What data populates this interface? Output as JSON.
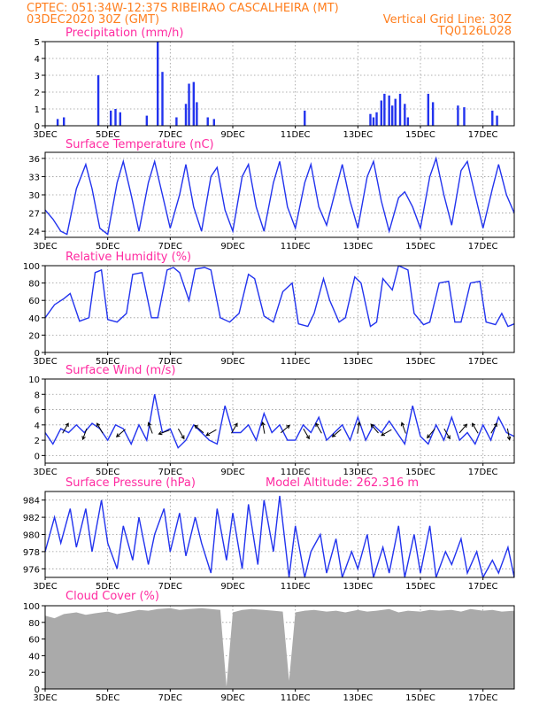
{
  "header": {
    "line1": "CPTEC:   051:34W-12:37S  RIBEIRAO CASCALHEIRA (MT)",
    "line2": "03DEC2020 30Z (GMT)",
    "grid_note": "Vertical Grid Line: 30Z",
    "code": "TQ0126L028"
  },
  "x_dates": [
    "3DEC",
    "5DEC",
    "7DEC",
    "9DEC",
    "11DEC",
    "13DEC",
    "15DEC",
    "17DEC"
  ],
  "colors": {
    "line": "#2233ee",
    "cloud": "#aaaaaa",
    "title": "#ff2aa0",
    "header": "#ff7f1f"
  },
  "chart_data": [
    {
      "type": "bar",
      "title": "Precipitation (mm/h)",
      "ylim": [
        0,
        5
      ],
      "yticks": [
        0,
        1,
        2,
        3,
        4,
        5
      ],
      "x_range_days": [
        3,
        18
      ],
      "x": [
        3.4,
        3.6,
        4.7,
        5.1,
        5.25,
        5.4,
        6.25,
        6.6,
        6.75,
        7.2,
        7.5,
        7.6,
        7.75,
        7.85,
        8.2,
        8.4,
        11.3,
        13.4,
        13.5,
        13.6,
        13.75,
        13.85,
        14.0,
        14.1,
        14.2,
        14.35,
        14.5,
        14.6,
        15.25,
        15.4,
        16.2,
        16.4,
        17.3,
        17.45
      ],
      "values": [
        0.4,
        0.5,
        3.0,
        0.9,
        1.0,
        0.8,
        0.6,
        5.0,
        3.2,
        0.5,
        1.3,
        2.5,
        2.6,
        1.4,
        0.5,
        0.4,
        0.9,
        0.7,
        0.5,
        0.8,
        1.5,
        1.9,
        1.8,
        1.2,
        1.6,
        1.9,
        1.3,
        0.5,
        1.9,
        1.4,
        1.2,
        1.1,
        0.9,
        0.6
      ]
    },
    {
      "type": "line",
      "title": "Surface Temperature (nC)",
      "ylim": [
        23,
        37
      ],
      "yticks": [
        24,
        27,
        30,
        33,
        36
      ],
      "x_range_days": [
        3,
        18
      ],
      "x": [
        3.0,
        3.25,
        3.5,
        3.7,
        4.0,
        4.3,
        4.5,
        4.75,
        5.0,
        5.3,
        5.5,
        5.75,
        6.0,
        6.3,
        6.5,
        6.75,
        7.0,
        7.3,
        7.5,
        7.75,
        8.0,
        8.3,
        8.5,
        8.75,
        9.0,
        9.3,
        9.5,
        9.75,
        10.0,
        10.3,
        10.5,
        10.75,
        11.0,
        11.3,
        11.5,
        11.75,
        12.0,
        12.3,
        12.5,
        12.75,
        13.0,
        13.3,
        13.5,
        13.75,
        14.0,
        14.3,
        14.5,
        14.75,
        15.0,
        15.3,
        15.5,
        15.75,
        16.0,
        16.3,
        16.5,
        16.75,
        17.0,
        17.3,
        17.5,
        17.75,
        18.0
      ],
      "values": [
        27.5,
        26,
        24,
        23.5,
        31,
        35,
        31,
        24.5,
        23.5,
        32,
        35.5,
        30,
        24,
        32,
        35.5,
        30,
        24.5,
        30,
        35,
        28,
        24,
        33,
        34.5,
        27.5,
        24,
        33,
        35,
        28,
        24,
        32,
        35.5,
        28,
        24.5,
        32,
        35,
        28,
        25,
        31,
        35,
        29,
        24.5,
        33,
        35.5,
        29,
        24,
        29.5,
        30.5,
        28,
        24.5,
        33,
        36,
        30,
        25,
        34,
        35.5,
        30,
        24.5,
        31,
        35,
        30,
        27
      ]
    },
    {
      "type": "line",
      "title": "Relative Humidity (%)",
      "ylim": [
        0,
        100
      ],
      "yticks": [
        0,
        20,
        40,
        60,
        80,
        100
      ],
      "x_range_days": [
        3,
        18
      ],
      "x": [
        3.0,
        3.3,
        3.6,
        3.8,
        4.1,
        4.4,
        4.6,
        4.8,
        5.0,
        5.3,
        5.6,
        5.8,
        6.1,
        6.4,
        6.6,
        6.9,
        7.1,
        7.3,
        7.6,
        7.8,
        8.1,
        8.3,
        8.6,
        8.9,
        9.2,
        9.5,
        9.7,
        10.0,
        10.3,
        10.6,
        10.9,
        11.1,
        11.4,
        11.6,
        11.9,
        12.1,
        12.4,
        12.6,
        12.9,
        13.1,
        13.4,
        13.6,
        13.8,
        14.1,
        14.3,
        14.6,
        14.8,
        15.1,
        15.3,
        15.6,
        15.9,
        16.1,
        16.3,
        16.6,
        16.9,
        17.1,
        17.4,
        17.6,
        17.8,
        18.0
      ],
      "values": [
        40,
        55,
        62,
        68,
        36,
        40,
        92,
        95,
        38,
        35,
        45,
        90,
        92,
        40,
        40,
        95,
        98,
        92,
        60,
        96,
        98,
        95,
        40,
        35,
        45,
        90,
        85,
        42,
        35,
        70,
        80,
        33,
        30,
        45,
        85,
        60,
        35,
        40,
        87,
        80,
        30,
        35,
        85,
        72,
        100,
        95,
        45,
        32,
        35,
        80,
        82,
        35,
        35,
        80,
        82,
        35,
        32,
        45,
        30,
        33
      ]
    },
    {
      "type": "line",
      "title": "Surface Wind (m/s)",
      "ylim": [
        -1,
        10
      ],
      "yticks": [
        0,
        2,
        4,
        6,
        8,
        10
      ],
      "x_range_days": [
        3,
        18
      ],
      "x": [
        3.0,
        3.25,
        3.5,
        3.75,
        4.0,
        4.25,
        4.5,
        4.75,
        5.0,
        5.25,
        5.5,
        5.75,
        6.0,
        6.25,
        6.5,
        6.75,
        7.0,
        7.25,
        7.5,
        7.75,
        8.0,
        8.25,
        8.5,
        8.75,
        9.0,
        9.25,
        9.5,
        9.75,
        10.0,
        10.25,
        10.5,
        10.75,
        11.0,
        11.25,
        11.5,
        11.75,
        12.0,
        12.25,
        12.5,
        12.75,
        13.0,
        13.25,
        13.5,
        13.75,
        14.0,
        14.25,
        14.5,
        14.75,
        15.0,
        15.25,
        15.5,
        15.75,
        16.0,
        16.25,
        16.5,
        16.75,
        17.0,
        17.25,
        17.5,
        17.75,
        18.0
      ],
      "values": [
        3,
        1.5,
        3.5,
        3,
        4,
        3,
        4.2,
        3.5,
        2,
        4,
        3.5,
        1.5,
        4,
        2,
        8,
        3,
        3.5,
        1,
        2,
        4,
        3,
        2,
        1.5,
        6.5,
        3,
        3,
        4,
        2,
        5.5,
        3,
        4,
        2,
        2,
        4,
        3,
        5,
        2,
        3,
        4,
        2,
        5,
        2,
        4,
        3,
        4.5,
        3,
        1.5,
        6.5,
        2.5,
        1.5,
        4,
        2,
        5,
        2,
        3,
        1.5,
        4,
        2,
        5,
        3,
        2.5
      ],
      "arrow_x": [
        3.6,
        4.3,
        4.8,
        5.5,
        6.4,
        6.9,
        7.3,
        8.0,
        8.4,
        9.0,
        10.0,
        10.6,
        11.3,
        11.8,
        12.4,
        13.0,
        13.6,
        14.0,
        14.5,
        15.4,
        15.8,
        16.3,
        16.8,
        17.3,
        17.8
      ],
      "arrow_dir_deg": [
        60,
        250,
        120,
        220,
        110,
        200,
        300,
        140,
        210,
        60,
        100,
        40,
        300,
        120,
        220,
        80,
        130,
        210,
        110,
        230,
        300,
        50,
        120,
        60,
        280
      ]
    },
    {
      "type": "line",
      "title": "Surface Pressure (hPa)",
      "annotation": "Model Altitude: 262.316 m",
      "ylim": [
        975,
        985
      ],
      "yticks": [
        976,
        978,
        980,
        982,
        984
      ],
      "x_range_days": [
        3,
        18
      ],
      "x": [
        3.0,
        3.3,
        3.5,
        3.8,
        4.0,
        4.3,
        4.5,
        4.8,
        5.0,
        5.3,
        5.5,
        5.8,
        6.0,
        6.3,
        6.5,
        6.8,
        7.0,
        7.3,
        7.5,
        7.8,
        8.0,
        8.3,
        8.5,
        8.8,
        9.0,
        9.3,
        9.5,
        9.8,
        10.0,
        10.3,
        10.5,
        10.8,
        11.0,
        11.3,
        11.5,
        11.8,
        12.0,
        12.3,
        12.5,
        12.8,
        13.0,
        13.3,
        13.5,
        13.8,
        14.0,
        14.3,
        14.5,
        14.8,
        15.0,
        15.3,
        15.5,
        15.8,
        16.0,
        16.3,
        16.5,
        16.8,
        17.0,
        17.3,
        17.5,
        17.8,
        18.0
      ],
      "values": [
        978,
        982,
        979,
        983,
        978.5,
        983,
        978,
        984,
        979,
        976,
        981,
        977,
        982,
        976.5,
        980,
        983,
        978,
        982.5,
        977.5,
        982,
        979,
        975.5,
        983,
        977,
        982.5,
        976,
        983.5,
        976.5,
        984,
        978,
        984.5,
        975,
        981,
        975,
        978,
        980,
        975.5,
        979.5,
        975,
        978,
        976,
        980,
        975,
        978.5,
        975.5,
        981,
        975,
        980,
        975.5,
        981,
        975,
        978,
        976.5,
        979.5,
        975.5,
        978,
        975,
        977,
        975.5,
        978.5,
        975
      ]
    },
    {
      "type": "area",
      "title": "Cloud Cover (%)",
      "ylim": [
        0,
        100
      ],
      "yticks": [
        0,
        20,
        40,
        60,
        80,
        100
      ],
      "x_range_days": [
        3,
        18
      ],
      "x": [
        3.0,
        3.3,
        3.6,
        4.0,
        4.3,
        4.6,
        5.0,
        5.3,
        5.6,
        6.0,
        6.3,
        6.6,
        7.0,
        7.3,
        7.6,
        8.0,
        8.3,
        8.6,
        8.8,
        9.0,
        9.3,
        9.6,
        10.0,
        10.3,
        10.6,
        10.8,
        11.0,
        11.3,
        11.6,
        12.0,
        12.3,
        12.6,
        13.0,
        13.3,
        13.6,
        14.0,
        14.3,
        14.6,
        15.0,
        15.3,
        15.6,
        16.0,
        16.3,
        16.6,
        17.0,
        17.3,
        17.6,
        18.0
      ],
      "values": [
        88,
        85,
        90,
        92,
        89,
        91,
        93,
        90,
        92,
        95,
        94,
        96,
        97,
        95,
        96,
        97,
        96,
        95,
        3,
        92,
        95,
        96,
        95,
        94,
        93,
        10,
        92,
        94,
        95,
        93,
        94,
        92,
        95,
        93,
        94,
        96,
        92,
        94,
        93,
        95,
        94,
        95,
        93,
        96,
        94,
        95,
        93,
        94
      ]
    }
  ]
}
